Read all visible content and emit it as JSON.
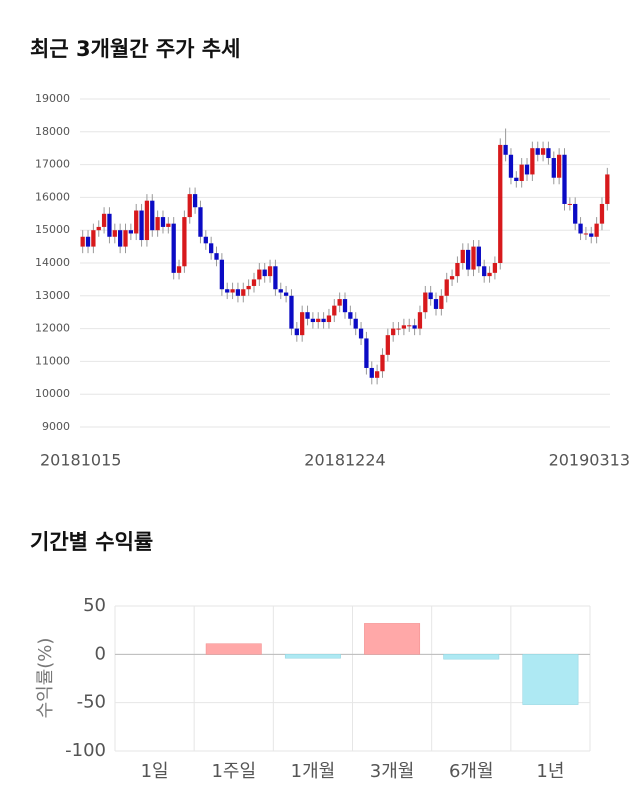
{
  "chart_data": [
    {
      "type": "candlestick",
      "title": "최근 3개월간 주가 추세",
      "categories": [
        "20181015",
        null,
        null,
        null,
        null,
        null,
        null,
        null,
        null,
        null,
        null,
        null,
        null,
        null,
        null,
        null,
        null,
        null,
        null,
        null,
        null,
        null,
        null,
        null,
        null,
        null,
        null,
        null,
        null,
        null,
        null,
        null,
        null,
        null,
        null,
        null,
        null,
        null,
        null,
        null,
        null,
        null,
        null,
        null,
        null,
        null,
        null,
        null,
        null,
        "20181224",
        null,
        null,
        null,
        null,
        null,
        null,
        null,
        null,
        null,
        null,
        null,
        null,
        null,
        null,
        null,
        null,
        null,
        null,
        null,
        null,
        null,
        null,
        null,
        null,
        null,
        null,
        null,
        null,
        null,
        null,
        null,
        null,
        null,
        null,
        null,
        null,
        null,
        null,
        null,
        null,
        null,
        null,
        null,
        null,
        null,
        null,
        null,
        null,
        "20190313"
      ],
      "open": [
        14500,
        14800,
        14500,
        15000,
        15100,
        15500,
        14800,
        15000,
        14500,
        15000,
        14900,
        15600,
        14700,
        15900,
        15000,
        15400,
        15100,
        15200,
        13700,
        13900,
        15400,
        16100,
        15700,
        14800,
        14600,
        14300,
        14100,
        13200,
        13100,
        13200,
        13000,
        13200,
        13300,
        13500,
        13800,
        13600,
        13900,
        13200,
        13100,
        13000,
        12000,
        11800,
        12500,
        12300,
        12200,
        12300,
        12200,
        12400,
        12700,
        12900,
        12500,
        12300,
        12000,
        11700,
        10800,
        10500,
        10700,
        11200,
        11800,
        12000,
        12000,
        12100,
        12100,
        12000,
        12500,
        13100,
        12900,
        12600,
        13000,
        13500,
        13600,
        14000,
        14400,
        13800,
        14500,
        13900,
        13600,
        13700,
        14000,
        17600,
        17300,
        16600,
        16500,
        17000,
        16700,
        17500,
        17300,
        17500,
        17200,
        16600,
        17300,
        15800,
        15800,
        15200,
        14900,
        14900,
        14800,
        15200,
        15800
      ],
      "high": [
        15000,
        15000,
        15200,
        15300,
        15700,
        15700,
        15200,
        15200,
        15200,
        15200,
        15800,
        15800,
        16100,
        16100,
        15600,
        15600,
        15400,
        15400,
        14100,
        15600,
        16300,
        16300,
        15900,
        15000,
        14800,
        14500,
        14300,
        13400,
        13400,
        13400,
        13400,
        13500,
        13700,
        14000,
        14000,
        14100,
        14100,
        13400,
        13300,
        13200,
        12200,
        12700,
        12700,
        12500,
        12500,
        12500,
        12600,
        12900,
        13100,
        13100,
        12700,
        12500,
        12200,
        11900,
        11000,
        10900,
        11400,
        12000,
        12200,
        12200,
        12300,
        12300,
        12300,
        12700,
        13300,
        13300,
        13100,
        13200,
        13700,
        13800,
        14200,
        14600,
        14600,
        14700,
        14700,
        14100,
        13900,
        14200,
        17800,
        18100,
        17500,
        16800,
        17200,
        17200,
        17700,
        17700,
        17700,
        17700,
        17400,
        17500,
        17500,
        16000,
        16000,
        15400,
        15100,
        15100,
        15400,
        16000,
        16900
      ],
      "low": [
        14300,
        14300,
        14300,
        14800,
        14900,
        14600,
        14600,
        14300,
        14300,
        14700,
        14700,
        14500,
        14500,
        14800,
        14800,
        14900,
        14900,
        13500,
        13500,
        13700,
        15200,
        15500,
        14600,
        14400,
        14100,
        13900,
        13000,
        12900,
        12900,
        12800,
        12800,
        13000,
        13100,
        13300,
        13400,
        13400,
        13000,
        12900,
        12800,
        11800,
        11600,
        11600,
        12100,
        12000,
        12000,
        12000,
        12000,
        12200,
        12500,
        12300,
        12100,
        11800,
        11500,
        10600,
        10300,
        10300,
        10500,
        11000,
        11600,
        11800,
        11800,
        11900,
        11800,
        11800,
        12300,
        12700,
        12400,
        12400,
        12800,
        13300,
        13400,
        13800,
        13600,
        13600,
        13700,
        13400,
        13400,
        13500,
        13800,
        17100,
        16400,
        16300,
        16300,
        16500,
        16500,
        17100,
        17100,
        17000,
        16400,
        16400,
        15600,
        15600,
        15000,
        14700,
        14700,
        14600,
        14600,
        15000,
        15600
      ],
      "close": [
        14800,
        14500,
        15000,
        15100,
        15500,
        14800,
        15000,
        14500,
        15000,
        14900,
        15600,
        14700,
        15900,
        15000,
        15400,
        15100,
        15200,
        13700,
        13900,
        15400,
        16100,
        15700,
        14800,
        14600,
        14300,
        14100,
        13200,
        13100,
        13200,
        13000,
        13200,
        13300,
        13500,
        13800,
        13600,
        13900,
        13200,
        13100,
        13000,
        12000,
        11800,
        12500,
        12300,
        12200,
        12300,
        12200,
        12400,
        12700,
        12900,
        12500,
        12300,
        12000,
        11700,
        10800,
        10500,
        10700,
        11200,
        11800,
        12000,
        12000,
        12100,
        12100,
        12000,
        12500,
        13100,
        12900,
        12600,
        13000,
        13500,
        13600,
        14000,
        14400,
        13800,
        14500,
        13900,
        13600,
        13700,
        14000,
        17600,
        17300,
        16600,
        16500,
        17000,
        16700,
        17500,
        17300,
        17500,
        17200,
        16600,
        17300,
        15800,
        15800,
        15200,
        14900,
        14900,
        14800,
        15200,
        15800,
        16700
      ],
      "up_color": "#d7191c",
      "down_color": "#0b0bc4",
      "ylim": [
        9000,
        19000
      ],
      "yticks": [
        9000,
        10000,
        11000,
        12000,
        13000,
        14000,
        15000,
        16000,
        17000,
        18000,
        19000
      ],
      "grid": true
    },
    {
      "type": "bar",
      "title": "기간별 수익률",
      "y_label": "수익률(%)",
      "categories": [
        "1일",
        "1주일",
        "1개월",
        "3개월",
        "6개월",
        "1년"
      ],
      "values": [
        0,
        11,
        -4,
        32,
        -5,
        -52
      ],
      "positive_color": "#ffa8a8",
      "negative_color": "#aee9f3",
      "ylim": [
        -100,
        50
      ],
      "yticks": [
        -100,
        -50,
        0,
        50
      ],
      "grid": true
    }
  ]
}
